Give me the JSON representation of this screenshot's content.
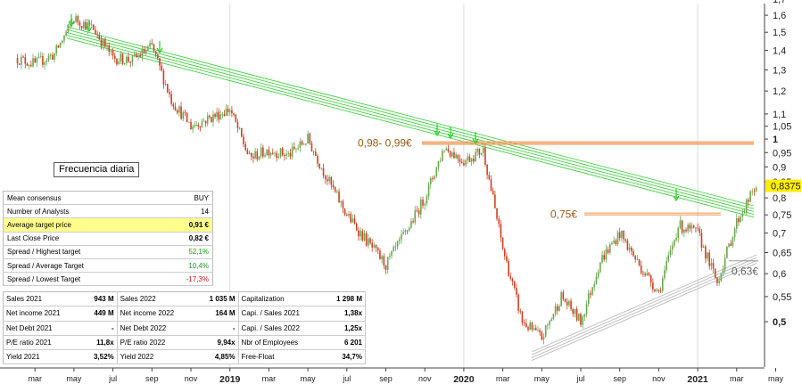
{
  "chart_data": {
    "type": "candlestick",
    "title": "",
    "y_axis": {
      "scale": "log",
      "range": [
        0.44,
        1.75
      ],
      "ticks": [
        "1,7",
        "1,6",
        "1,5",
        "1,4",
        "1,3",
        "1,2",
        "1,1",
        "1,05",
        "1",
        "0,95",
        "0,9",
        "0,85",
        "0,8",
        "0,75",
        "0,7",
        "0,65",
        "0,6",
        "0,55",
        "0,5"
      ],
      "bold_ticks": [
        "1",
        "0,5"
      ]
    },
    "x_axis": {
      "ticks": [
        "mar",
        "may",
        "jul",
        "sep",
        "nov",
        "2019",
        "mar",
        "may",
        "jul",
        "sep",
        "nov",
        "2020",
        "mar",
        "may",
        "jul",
        "sep",
        "nov",
        "2021",
        "mar",
        "may"
      ],
      "year_ticks": [
        "2019",
        "2020",
        "2021"
      ]
    },
    "price_path": [
      {
        "t": "2018-02",
        "v": 1.36
      },
      {
        "t": "2018-03",
        "v": 1.33
      },
      {
        "t": "2018-04",
        "v": 1.38
      },
      {
        "t": "2018-05",
        "v": 1.58
      },
      {
        "t": "2018-06",
        "v": 1.52
      },
      {
        "t": "2018-07",
        "v": 1.36
      },
      {
        "t": "2018-08",
        "v": 1.35
      },
      {
        "t": "2018-09",
        "v": 1.42
      },
      {
        "t": "2018-10",
        "v": 1.16
      },
      {
        "t": "2018-11",
        "v": 1.05
      },
      {
        "t": "2019-01",
        "v": 1.12
      },
      {
        "t": "2019-02",
        "v": 0.93
      },
      {
        "t": "2019-03",
        "v": 0.96
      },
      {
        "t": "2019-04",
        "v": 0.94
      },
      {
        "t": "2019-05",
        "v": 1.0
      },
      {
        "t": "2019-06",
        "v": 0.86
      },
      {
        "t": "2019-07",
        "v": 0.75
      },
      {
        "t": "2019-08",
        "v": 0.68
      },
      {
        "t": "2019-09",
        "v": 0.62
      },
      {
        "t": "2019-10",
        "v": 0.7
      },
      {
        "t": "2019-11",
        "v": 0.8
      },
      {
        "t": "2019-12",
        "v": 0.97
      },
      {
        "t": "2020-01",
        "v": 0.92
      },
      {
        "t": "2020-02",
        "v": 0.96
      },
      {
        "t": "2020-03",
        "v": 0.66
      },
      {
        "t": "2020-04",
        "v": 0.5
      },
      {
        "t": "2020-05",
        "v": 0.47
      },
      {
        "t": "2020-06",
        "v": 0.55
      },
      {
        "t": "2020-07",
        "v": 0.5
      },
      {
        "t": "2020-08",
        "v": 0.63
      },
      {
        "t": "2020-09",
        "v": 0.7
      },
      {
        "t": "2020-10",
        "v": 0.62
      },
      {
        "t": "2020-11",
        "v": 0.56
      },
      {
        "t": "2020-12",
        "v": 0.72
      },
      {
        "t": "2021-01",
        "v": 0.7
      },
      {
        "t": "2021-02",
        "v": 0.58
      },
      {
        "t": "2021-03",
        "v": 0.73
      },
      {
        "t": "2021-04",
        "v": 0.8375
      }
    ],
    "last_price_label": "0,8375",
    "resistance_zones": [
      {
        "label": "0,98- 0,99€",
        "from": 0.98,
        "to": 0.99
      },
      {
        "label": "0,75€",
        "from": 0.75,
        "to": 0.755
      }
    ],
    "support_label": "0,63€",
    "support_value": 0.63,
    "colors": {
      "up": "#6aa84f",
      "down": "#cc4125",
      "channel": "#33cc33",
      "zone": "#f0a060",
      "support": "#bbbbbb",
      "last_price": "#ffee00"
    }
  },
  "frequency_label": "Frecuencia diaria",
  "consensus": [
    {
      "label": "Mean consensus",
      "value": "BUY",
      "style": ""
    },
    {
      "label": "Number of Analysts",
      "value": "14",
      "style": ""
    },
    {
      "label": "Average target price",
      "value": "0,91 €",
      "style": "bold",
      "highlight": true
    },
    {
      "label": "Last Close Price",
      "value": "0,82 €",
      "style": "bold"
    },
    {
      "label": "Spread / Highest target",
      "value": "52,1%",
      "style": "green"
    },
    {
      "label": "Spread / Average Target",
      "value": "10,4%",
      "style": "green"
    },
    {
      "label": "Spread / Lowest Target",
      "value": "-17,3%",
      "style": "red"
    }
  ],
  "fundamentals": [
    [
      {
        "label": "Sales 2021",
        "value": "943 M"
      },
      {
        "label": "Sales 2022",
        "value": "1 035 M"
      },
      {
        "label": "Capitalization",
        "value": "1 298 M"
      }
    ],
    [
      {
        "label": "Net income 2021",
        "value": "449 M"
      },
      {
        "label": "Net income 2022",
        "value": "164 M"
      },
      {
        "label": "Capi. / Sales 2021",
        "value": "1,38x"
      }
    ],
    [
      {
        "label": "Net Debt 2021",
        "value": "-"
      },
      {
        "label": "Net Debt 2022",
        "value": "-"
      },
      {
        "label": "Capi. / Sales 2022",
        "value": "1,25x"
      }
    ],
    [
      {
        "label": "P/E ratio 2021",
        "value": "11,8x"
      },
      {
        "label": "P/E ratio 2022",
        "value": "9,94x"
      },
      {
        "label": "Nbr of Employees",
        "value": "6 201"
      }
    ],
    [
      {
        "label": "Yield 2021",
        "value": "3,52%"
      },
      {
        "label": "Yield 2022",
        "value": "4,85%"
      },
      {
        "label": "Free-Float",
        "value": "34,7%"
      }
    ]
  ]
}
